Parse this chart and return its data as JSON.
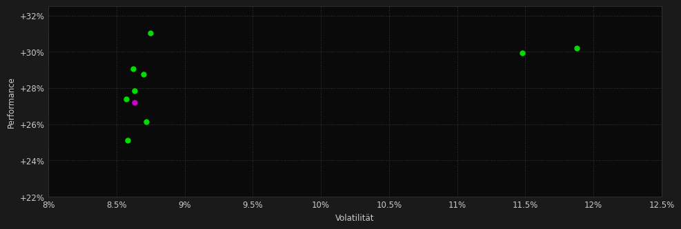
{
  "background_color": "#1a1a1a",
  "plot_bg_color": "#0a0a0a",
  "grid_color": "#3a3a3a",
  "text_color": "#cccccc",
  "xlabel": "Volatilität",
  "ylabel": "Performance",
  "xlim": [
    0.08,
    0.125
  ],
  "ylim": [
    0.22,
    0.325
  ],
  "xticks": [
    0.08,
    0.085,
    0.09,
    0.095,
    0.1,
    0.105,
    0.11,
    0.115,
    0.12,
    0.125
  ],
  "yticks": [
    0.22,
    0.24,
    0.26,
    0.28,
    0.3,
    0.32
  ],
  "green_points": [
    [
      0.0875,
      0.3105
    ],
    [
      0.0862,
      0.2905
    ],
    [
      0.087,
      0.2875
    ],
    [
      0.0863,
      0.2785
    ],
    [
      0.0857,
      0.274
    ],
    [
      0.0872,
      0.2615
    ],
    [
      0.0858,
      0.251
    ],
    [
      0.1148,
      0.2995
    ],
    [
      0.1188,
      0.302
    ]
  ],
  "magenta_points": [
    [
      0.0863,
      0.2718
    ]
  ],
  "green_color": "#00dd00",
  "magenta_color": "#cc00cc",
  "point_size": 25,
  "font_size": 8.5
}
